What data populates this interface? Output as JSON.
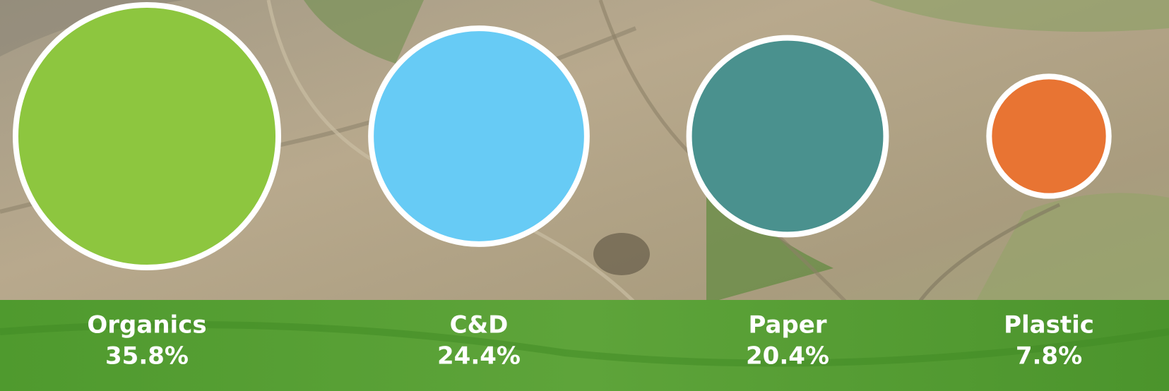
{
  "chart_data": {
    "type": "bubble",
    "categories": [
      "Organics",
      "C&D",
      "Paper",
      "Plastic"
    ],
    "values": [
      35.8,
      24.4,
      20.4,
      7.8
    ],
    "value_labels": [
      "35.8%",
      "24.4%",
      "20.4%",
      "7.8%"
    ],
    "colors": [
      "#8dc63f",
      "#67cbf5",
      "#4a918e",
      "#e87433"
    ]
  }
}
